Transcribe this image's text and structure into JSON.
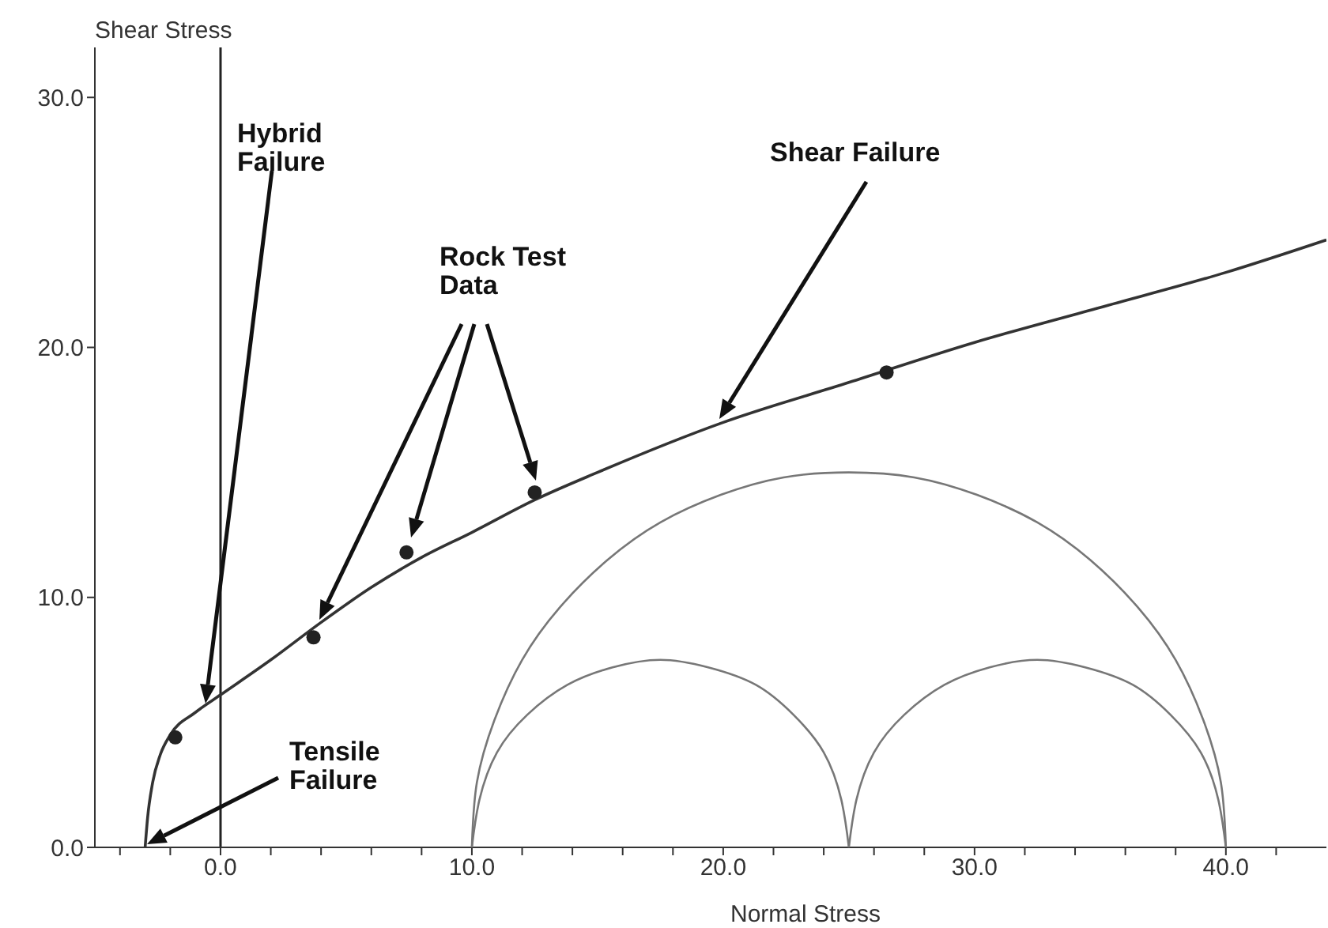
{
  "chart_data": {
    "type": "line",
    "xlabel": "Normal Stress",
    "ylabel": "Shear Stress",
    "xlim": [
      -5,
      44
    ],
    "ylim": [
      0,
      32
    ],
    "xticks": [
      {
        "value": -4,
        "label": null
      },
      {
        "value": -2,
        "label": null
      },
      {
        "value": 0,
        "label": "0.0"
      },
      {
        "value": 2,
        "label": null
      },
      {
        "value": 4,
        "label": null
      },
      {
        "value": 6,
        "label": null
      },
      {
        "value": 8,
        "label": null
      },
      {
        "value": 10,
        "label": "10.0"
      },
      {
        "value": 12,
        "label": null
      },
      {
        "value": 14,
        "label": null
      },
      {
        "value": 16,
        "label": null
      },
      {
        "value": 18,
        "label": null
      },
      {
        "value": 20,
        "label": "20.0"
      },
      {
        "value": 22,
        "label": null
      },
      {
        "value": 24,
        "label": null
      },
      {
        "value": 26,
        "label": null
      },
      {
        "value": 28,
        "label": null
      },
      {
        "value": 30,
        "label": "30.0"
      },
      {
        "value": 32,
        "label": null
      },
      {
        "value": 34,
        "label": null
      },
      {
        "value": 36,
        "label": null
      },
      {
        "value": 38,
        "label": null
      },
      {
        "value": 40,
        "label": "40.0"
      },
      {
        "value": 42,
        "label": null
      }
    ],
    "yticks": [
      {
        "value": 0,
        "label": "0.0"
      },
      {
        "value": 10,
        "label": "10.0"
      },
      {
        "value": 20,
        "label": "20.0"
      },
      {
        "value": 30,
        "label": "30.0"
      }
    ],
    "grid": false,
    "legend": false,
    "ref_lines": [
      {
        "axis": "x",
        "value": 0,
        "label": null,
        "color": "#222222"
      }
    ],
    "series": [
      {
        "marker": "none",
        "color": "#333333",
        "x": [
          -3,
          -2.9,
          -2.7,
          -2.4,
          -2,
          -1,
          0,
          2,
          4,
          6,
          8,
          10,
          12.5,
          15,
          20,
          25,
          30,
          35,
          40,
          44
        ],
        "values": [
          0,
          1.2,
          2.6,
          3.7,
          4.5,
          5.4,
          6.1,
          7.5,
          9.0,
          10.4,
          11.6,
          12.6,
          13.9,
          15.0,
          17.0,
          18.6,
          20.2,
          21.6,
          23.0,
          24.3
        ]
      },
      {
        "marker": "none",
        "color": "#777777",
        "x": [
          40,
          39.8,
          39.1,
          38.0,
          36.5,
          34.6,
          32.5,
          30.1,
          27.6,
          25,
          22.4,
          19.9,
          17.5,
          15.4,
          13.5,
          12.0,
          10.9,
          10.2,
          10
        ],
        "values": [
          0,
          2.6,
          5.1,
          7.5,
          9.6,
          11.5,
          13.0,
          14.1,
          14.8,
          15,
          14.8,
          14.1,
          13.0,
          11.5,
          9.6,
          7.5,
          5.1,
          2.6,
          0
        ]
      },
      {
        "marker": "none",
        "color": "#777777",
        "x": [
          25,
          24.7,
          24.0,
          22.8,
          21.3,
          19.4,
          17.5,
          15.6,
          13.8,
          12.2,
          11.0,
          10.3,
          10
        ],
        "values": [
          0,
          1.9,
          3.8,
          5.3,
          6.5,
          7.2,
          7.5,
          7.2,
          6.5,
          5.3,
          3.8,
          1.9,
          0
        ]
      },
      {
        "marker": "none",
        "color": "#777777",
        "x": [
          40,
          39.7,
          39.0,
          37.8,
          36.3,
          34.4,
          32.5,
          30.6,
          28.8,
          27.2,
          26.0,
          25.3,
          25
        ],
        "values": [
          0,
          1.9,
          3.8,
          5.3,
          6.5,
          7.2,
          7.5,
          7.2,
          6.5,
          5.3,
          3.8,
          1.9,
          0
        ]
      },
      {
        "type": "scatter",
        "marker": "circle",
        "color": "#222222",
        "x": [
          -1.8,
          3.7,
          7.4,
          12.5,
          26.5
        ],
        "values": [
          4.4,
          8.4,
          11.8,
          14.2,
          19.0
        ]
      }
    ],
    "annotations": [
      "Hybrid Failure",
      "Rock Test Data",
      "Shear Failure",
      "Tensile Failure"
    ]
  }
}
